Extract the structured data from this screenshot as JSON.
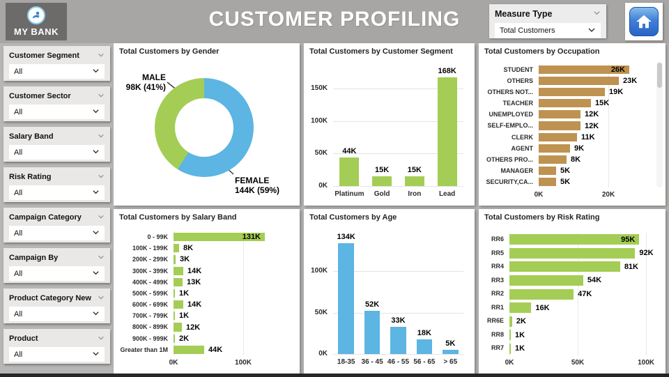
{
  "header": {
    "logo": {
      "text": "MY BANK"
    },
    "title": "CUSTOMER PROFILING",
    "measure_slicer": {
      "label": "Measure Type",
      "value": "Total Customers"
    }
  },
  "filters": [
    {
      "label": "Customer Segment",
      "value": "All"
    },
    {
      "label": "Customer Sector",
      "value": "All"
    },
    {
      "label": "Salary Band",
      "value": "All"
    },
    {
      "label": "Risk Rating",
      "value": "All"
    },
    {
      "label": "Campaign Category",
      "value": "All"
    },
    {
      "label": "Campaign By",
      "value": "All"
    },
    {
      "label": "Product Category New",
      "value": "All"
    },
    {
      "label": "Product",
      "value": "All"
    }
  ],
  "colors": {
    "green": "#A4CD55",
    "blue": "#5CB5E2",
    "tan": "#BE9250",
    "header_bg": "#A7A6A5",
    "logo_bg": "#6C6B6A",
    "card_bg": "#FFFFFF"
  },
  "chart_data": [
    {
      "id": "gender",
      "type": "donut",
      "title": "Total Customers by Gender",
      "slices": [
        {
          "label": "FEMALE",
          "value_k": 144,
          "value_text": "144K (59%)",
          "percent": 59,
          "color": "blue"
        },
        {
          "label": "MALE",
          "value_k": 98,
          "value_text": "98K (41%)",
          "percent": 41,
          "color": "green"
        }
      ]
    },
    {
      "id": "segment",
      "type": "column",
      "title": "Total Customers by Customer Segment",
      "color": "green",
      "categories": [
        "Platinum",
        "Gold",
        "Iron",
        "Lead"
      ],
      "values_k": [
        44,
        15,
        15,
        168
      ],
      "labels": [
        "44K",
        "15K",
        "15K",
        "168K"
      ],
      "y_ticks": [
        "0K",
        "50K",
        "100K",
        "150K"
      ],
      "y_tick_values": [
        0,
        50,
        100,
        150
      ],
      "y_max": 175
    },
    {
      "id": "occupation",
      "type": "bar",
      "title": "Total Customers by Occupation",
      "color": "tan",
      "scrollbar": true,
      "categories": [
        "STUDENT",
        "OTHERS",
        "OTHERS NOT...",
        "TEACHER",
        "UNEMPLOYED",
        "SELF-EMPLO...",
        "CLERK",
        "AGENT",
        "OTHERS PRO...",
        "MANAGER",
        "SECURITY,CA..."
      ],
      "values_k": [
        26,
        23,
        19,
        15,
        12,
        12,
        11,
        9,
        8,
        5,
        5
      ],
      "labels": [
        "26K",
        "23K",
        "19K",
        "15K",
        "12K",
        "12K",
        "11K",
        "9K",
        "8K",
        "5K",
        "5K"
      ],
      "x_ticks": [
        "0K",
        "20K"
      ],
      "x_tick_values": [
        0,
        20
      ],
      "x_max": 28
    },
    {
      "id": "salary",
      "type": "bar",
      "title": "Total Customers by Salary Band",
      "color": "green",
      "categories": [
        "0 - 99K",
        "100K - 199K",
        "200K - 299K",
        "300K - 399K",
        "400K - 499K",
        "500K - 599K",
        "600K - 699K",
        "700K - 799K",
        "800K - 899K",
        "900K - 999K",
        "Greater than 1M"
      ],
      "values_k": [
        131,
        8,
        3,
        14,
        13,
        1,
        14,
        1,
        12,
        2,
        44
      ],
      "labels": [
        "131K",
        "8K",
        "3K",
        "14K",
        "13K",
        "1K",
        "14K",
        "1K",
        "12K",
        "2K",
        "44K"
      ],
      "x_ticks": [
        "0K",
        "100K"
      ],
      "x_tick_values": [
        0,
        100
      ],
      "x_max": 135
    },
    {
      "id": "age",
      "type": "column",
      "title": "Total Customers by Age",
      "color": "blue",
      "categories": [
        "18-35",
        "36 - 45",
        "46 - 55",
        "56 - 65",
        "> 65"
      ],
      "values_k": [
        134,
        52,
        33,
        18,
        5
      ],
      "labels": [
        "134K",
        "52K",
        "33K",
        "18K",
        "5K"
      ],
      "y_ticks": [
        "0K",
        "50K",
        "100K"
      ],
      "y_tick_values": [
        0,
        50,
        100
      ],
      "y_max": 140
    },
    {
      "id": "risk",
      "type": "bar",
      "title": "Total Customers by Risk Rating",
      "color": "green",
      "categories": [
        "RR6",
        "RR5",
        "RR4",
        "RR3",
        "RR2",
        "RR1",
        "RR6E",
        "RR8",
        "RR7"
      ],
      "values_k": [
        95,
        92,
        81,
        54,
        47,
        16,
        2,
        1,
        1
      ],
      "labels": [
        "95K",
        "92K",
        "81K",
        "54K",
        "47K",
        "16K",
        "2K",
        "1K",
        "1K"
      ],
      "x_ticks": [
        "0K",
        "50K",
        "100K"
      ],
      "x_tick_values": [
        0,
        50,
        100
      ],
      "x_max": 102
    }
  ]
}
